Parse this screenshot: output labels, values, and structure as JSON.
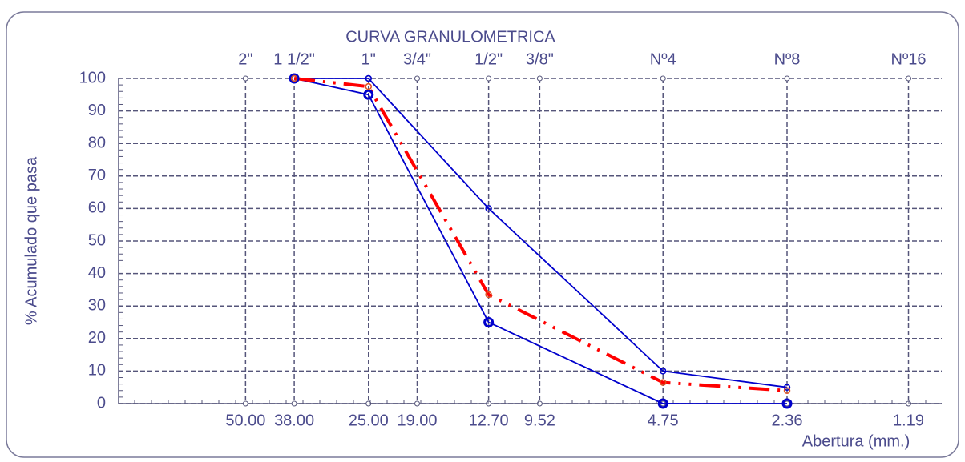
{
  "chart_data": {
    "type": "line",
    "title": "CURVA GRANULOMETRICA",
    "y_label": "% Acumulado que pasa",
    "x_label": "Abertura (mm.)",
    "xscale": "log",
    "xlim": [
      100,
      1
    ],
    "xticks": [
      {
        "value": 50,
        "label": "50.00"
      },
      {
        "value": 38,
        "label": "38.00"
      },
      {
        "value": 25,
        "label": "25.00"
      },
      {
        "value": 19,
        "label": "19.00"
      },
      {
        "value": 12.7,
        "label": "12.70"
      },
      {
        "value": 9.52,
        "label": "9.52"
      },
      {
        "value": 4.75,
        "label": "4.75"
      },
      {
        "value": 2.36,
        "label": "2.36"
      },
      {
        "value": 1.19,
        "label": "1.19"
      }
    ],
    "top_labels": [
      "2\"",
      "1 1/2\"",
      "1\"",
      "3/4\"",
      "1/2\"",
      "3/8\"",
      "Nº4",
      "Nº8",
      "Nº16"
    ],
    "ylim": [
      0,
      100
    ],
    "yticks": [
      0,
      10,
      20,
      30,
      40,
      50,
      60,
      70,
      80,
      90,
      100
    ],
    "grid": true,
    "x": [
      38,
      25,
      12.7,
      4.75,
      2.36
    ],
    "series": [
      {
        "color": "#0000cc",
        "style": "solid",
        "marker": "small",
        "values": [
          100,
          100,
          60,
          10,
          5
        ]
      },
      {
        "color": "#0000cc",
        "style": "solid",
        "marker": "large",
        "values": [
          100,
          95,
          25,
          0,
          0
        ]
      },
      {
        "color": "#ff0000",
        "style": "dashdot",
        "marker": "small",
        "values": [
          100,
          97.5,
          33.5,
          6.5,
          4
        ]
      }
    ]
  }
}
